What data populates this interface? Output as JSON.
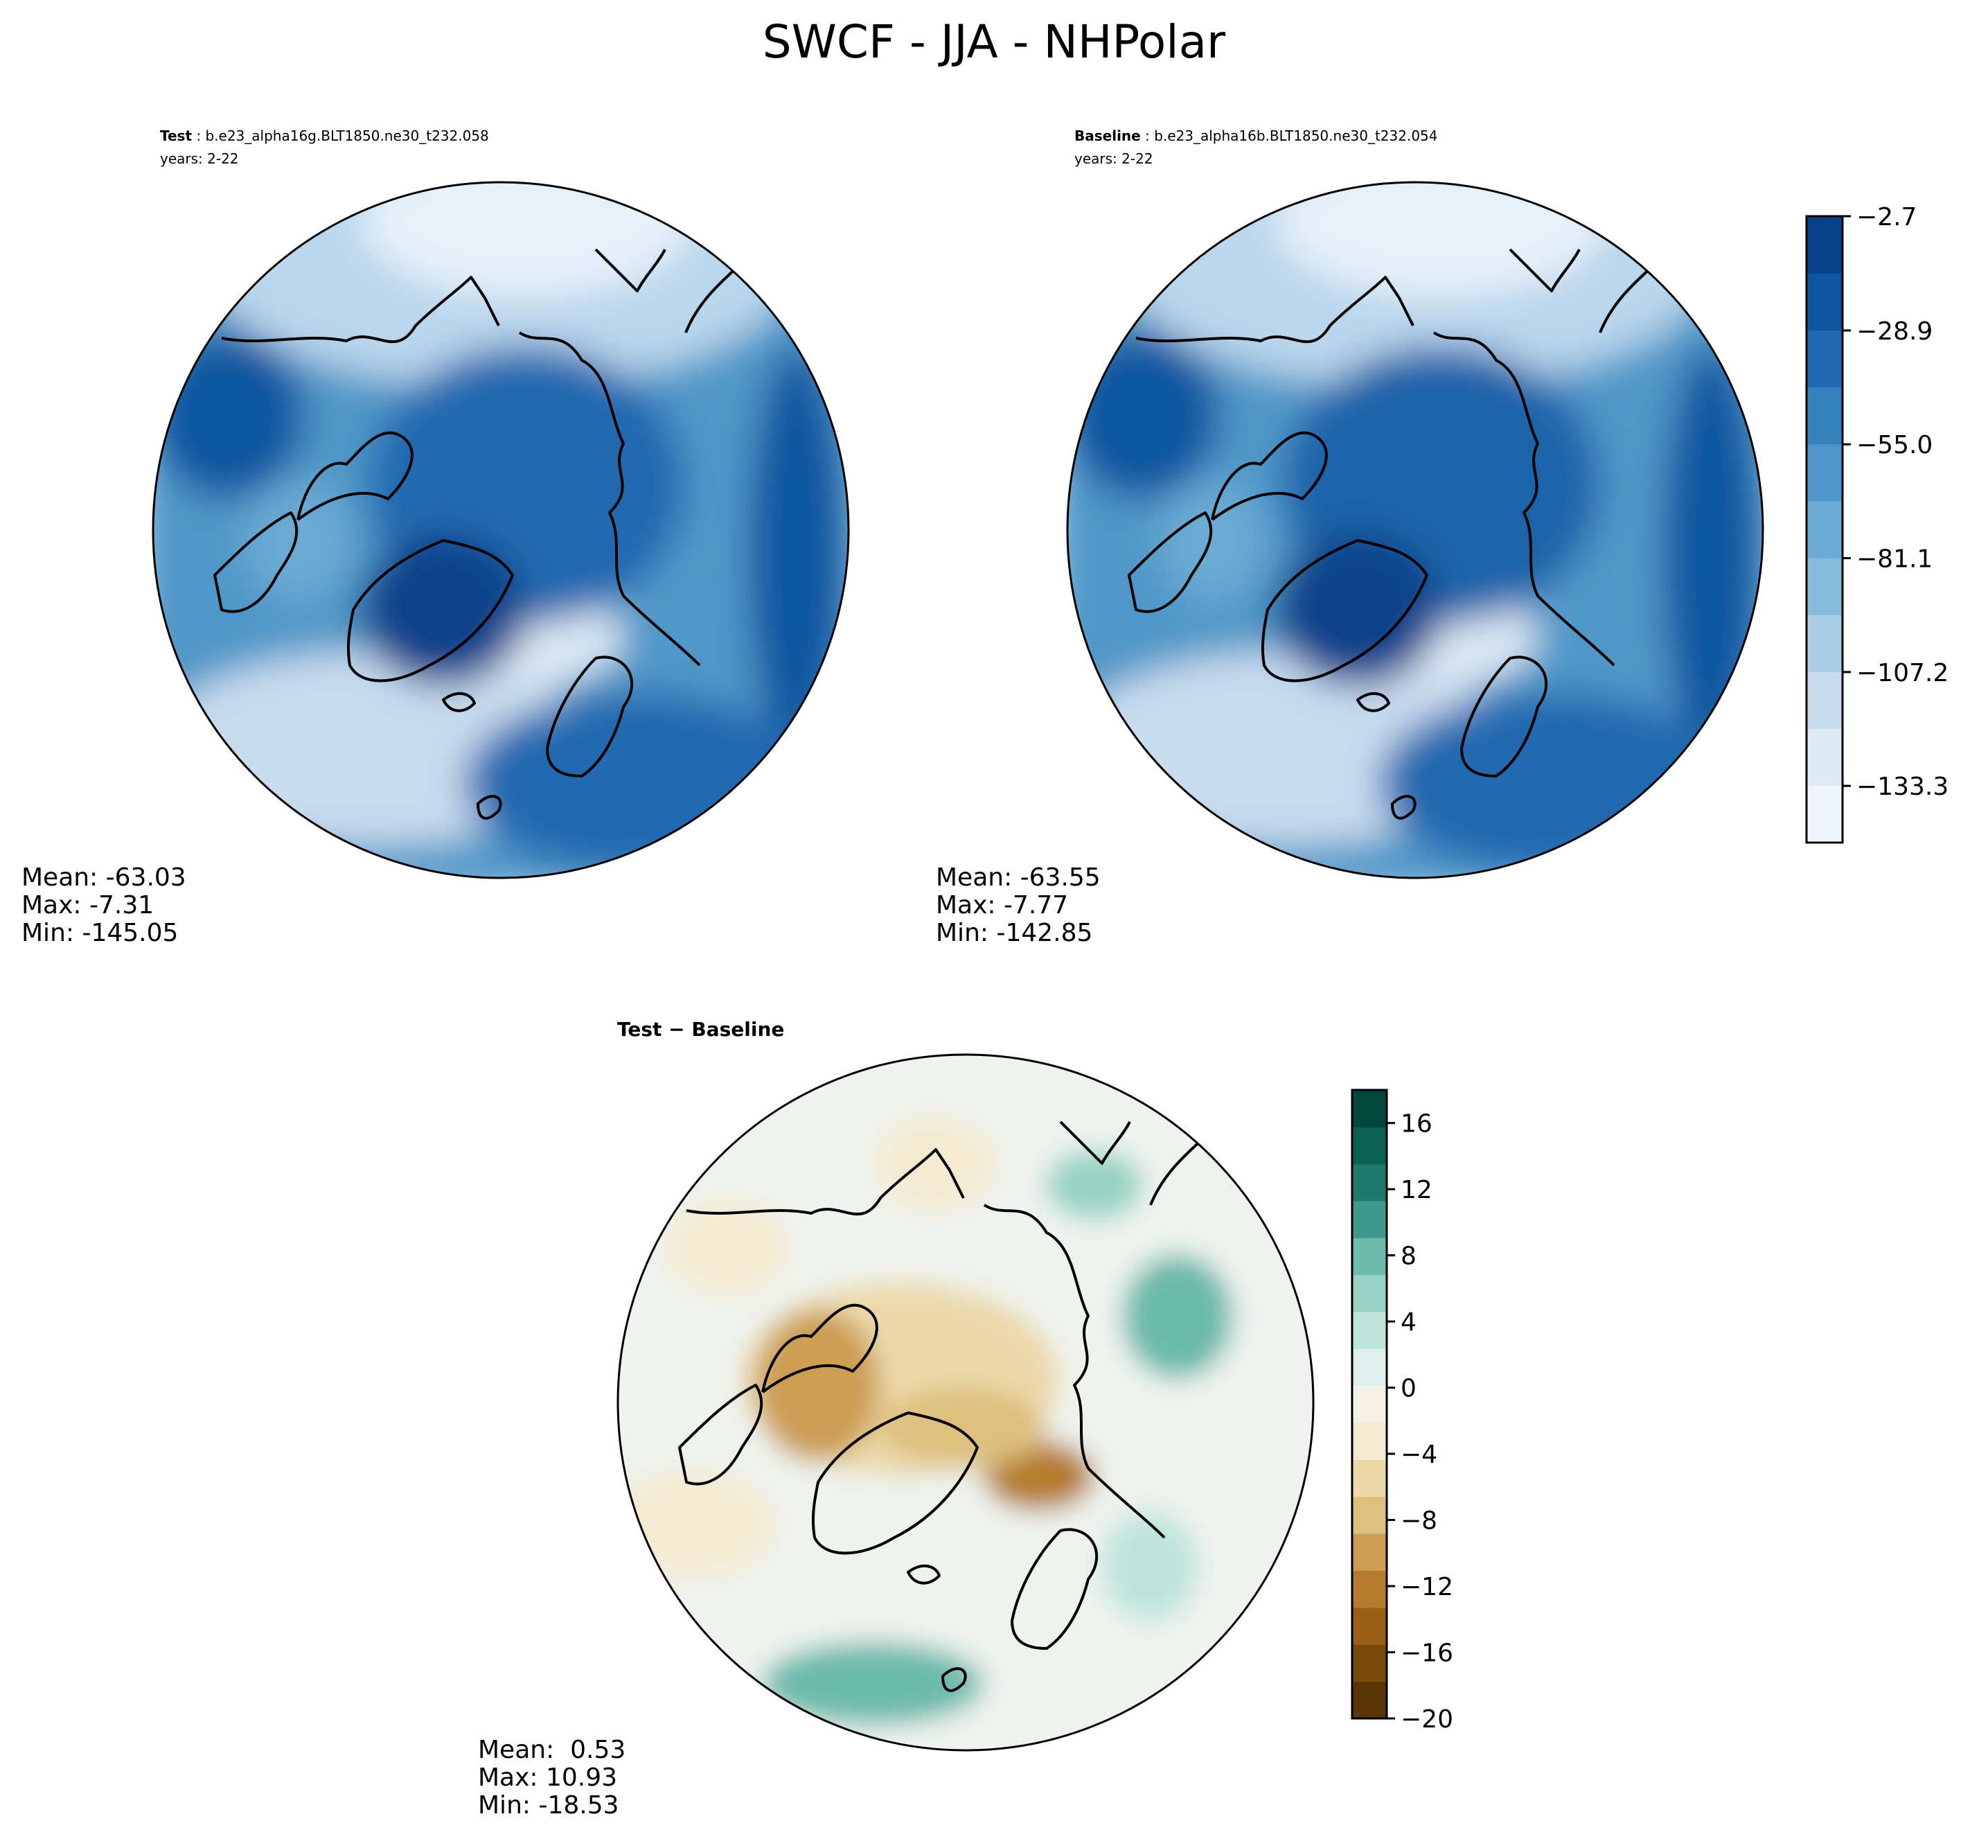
{
  "figure": {
    "title": "SWCF - JJA - NHPolar"
  },
  "panels": {
    "test": {
      "label_bold": "Test",
      "label_rest": " : b.e23_alpha16g.BLT1850.ne30_t232.058",
      "years": "years: 2-22",
      "stats": {
        "mean": "Mean: -63.03",
        "max": "Max: -7.31",
        "min": "Min: -145.05"
      }
    },
    "baseline": {
      "label_bold": "Baseline",
      "label_rest": " : b.e23_alpha16b.BLT1850.ne30_t232.054",
      "years": "years: 2-22",
      "stats": {
        "mean": "Mean: -63.55",
        "max": "Max: -7.77",
        "min": "Min: -142.85"
      }
    },
    "diff": {
      "label": "Test − Baseline",
      "stats": {
        "mean": "Mean:  0.53",
        "max": "Max: 10.93",
        "min": "Min: -18.53"
      }
    }
  },
  "colorbar_top": {
    "tick_labels": [
      "−2.7",
      "−28.9",
      "−55.0",
      "−81.1",
      "−107.2",
      "−133.3"
    ],
    "tick_values": [
      -2.7,
      -28.9,
      -55.0,
      -81.1,
      -107.2,
      -133.3
    ],
    "range": [
      -146.3,
      -2.7
    ],
    "colors": [
      "#f0f6fc",
      "#dde9f5",
      "#c9dcee",
      "#abcde5",
      "#87bbdb",
      "#6aaad3",
      "#4d96c7",
      "#3581bc",
      "#2069b0",
      "#0e56a0",
      "#09428a"
    ]
  },
  "colorbar_diff": {
    "tick_labels": [
      "16",
      "12",
      "8",
      "4",
      "0",
      "−4",
      "−8",
      "−12",
      "−16",
      "−20"
    ],
    "tick_values": [
      16,
      12,
      8,
      4,
      0,
      -4,
      -8,
      -12,
      -16,
      -20
    ],
    "range": [
      -20,
      18
    ],
    "colors": [
      "#5a3606",
      "#7a4a0c",
      "#985f15",
      "#b57b2c",
      "#cc9d53",
      "#dec07e",
      "#ecd9aa",
      "#f4ead1",
      "#f4f0e4",
      "#e0efec",
      "#bfe4dc",
      "#97d2c5",
      "#6bbaac",
      "#3e9a8c",
      "#1f7a6d",
      "#0c5f53",
      "#03463b"
    ]
  },
  "chart_data": [
    {
      "type": "heatmap",
      "title": "Test : b.e23_alpha16g.BLT1850.ne30_t232.058",
      "projection": "north polar stereographic",
      "stats": {
        "mean": -63.03,
        "max": -7.31,
        "min": -145.05
      },
      "colorbar_ticks": [
        -2.7,
        -28.9,
        -55.0,
        -81.1,
        -107.2,
        -133.3
      ]
    },
    {
      "type": "heatmap",
      "title": "Baseline : b.e23_alpha16b.BLT1850.ne30_t232.054",
      "projection": "north polar stereographic",
      "stats": {
        "mean": -63.55,
        "max": -7.77,
        "min": -142.85
      },
      "colorbar_ticks": [
        -2.7,
        -28.9,
        -55.0,
        -81.1,
        -107.2,
        -133.3
      ]
    },
    {
      "type": "heatmap",
      "title": "Test − Baseline",
      "projection": "north polar stereographic",
      "stats": {
        "mean": 0.53,
        "max": 10.93,
        "min": -18.53
      },
      "colorbar_ticks": [
        16,
        12,
        8,
        4,
        0,
        -4,
        -8,
        -12,
        -16,
        -20
      ]
    }
  ]
}
